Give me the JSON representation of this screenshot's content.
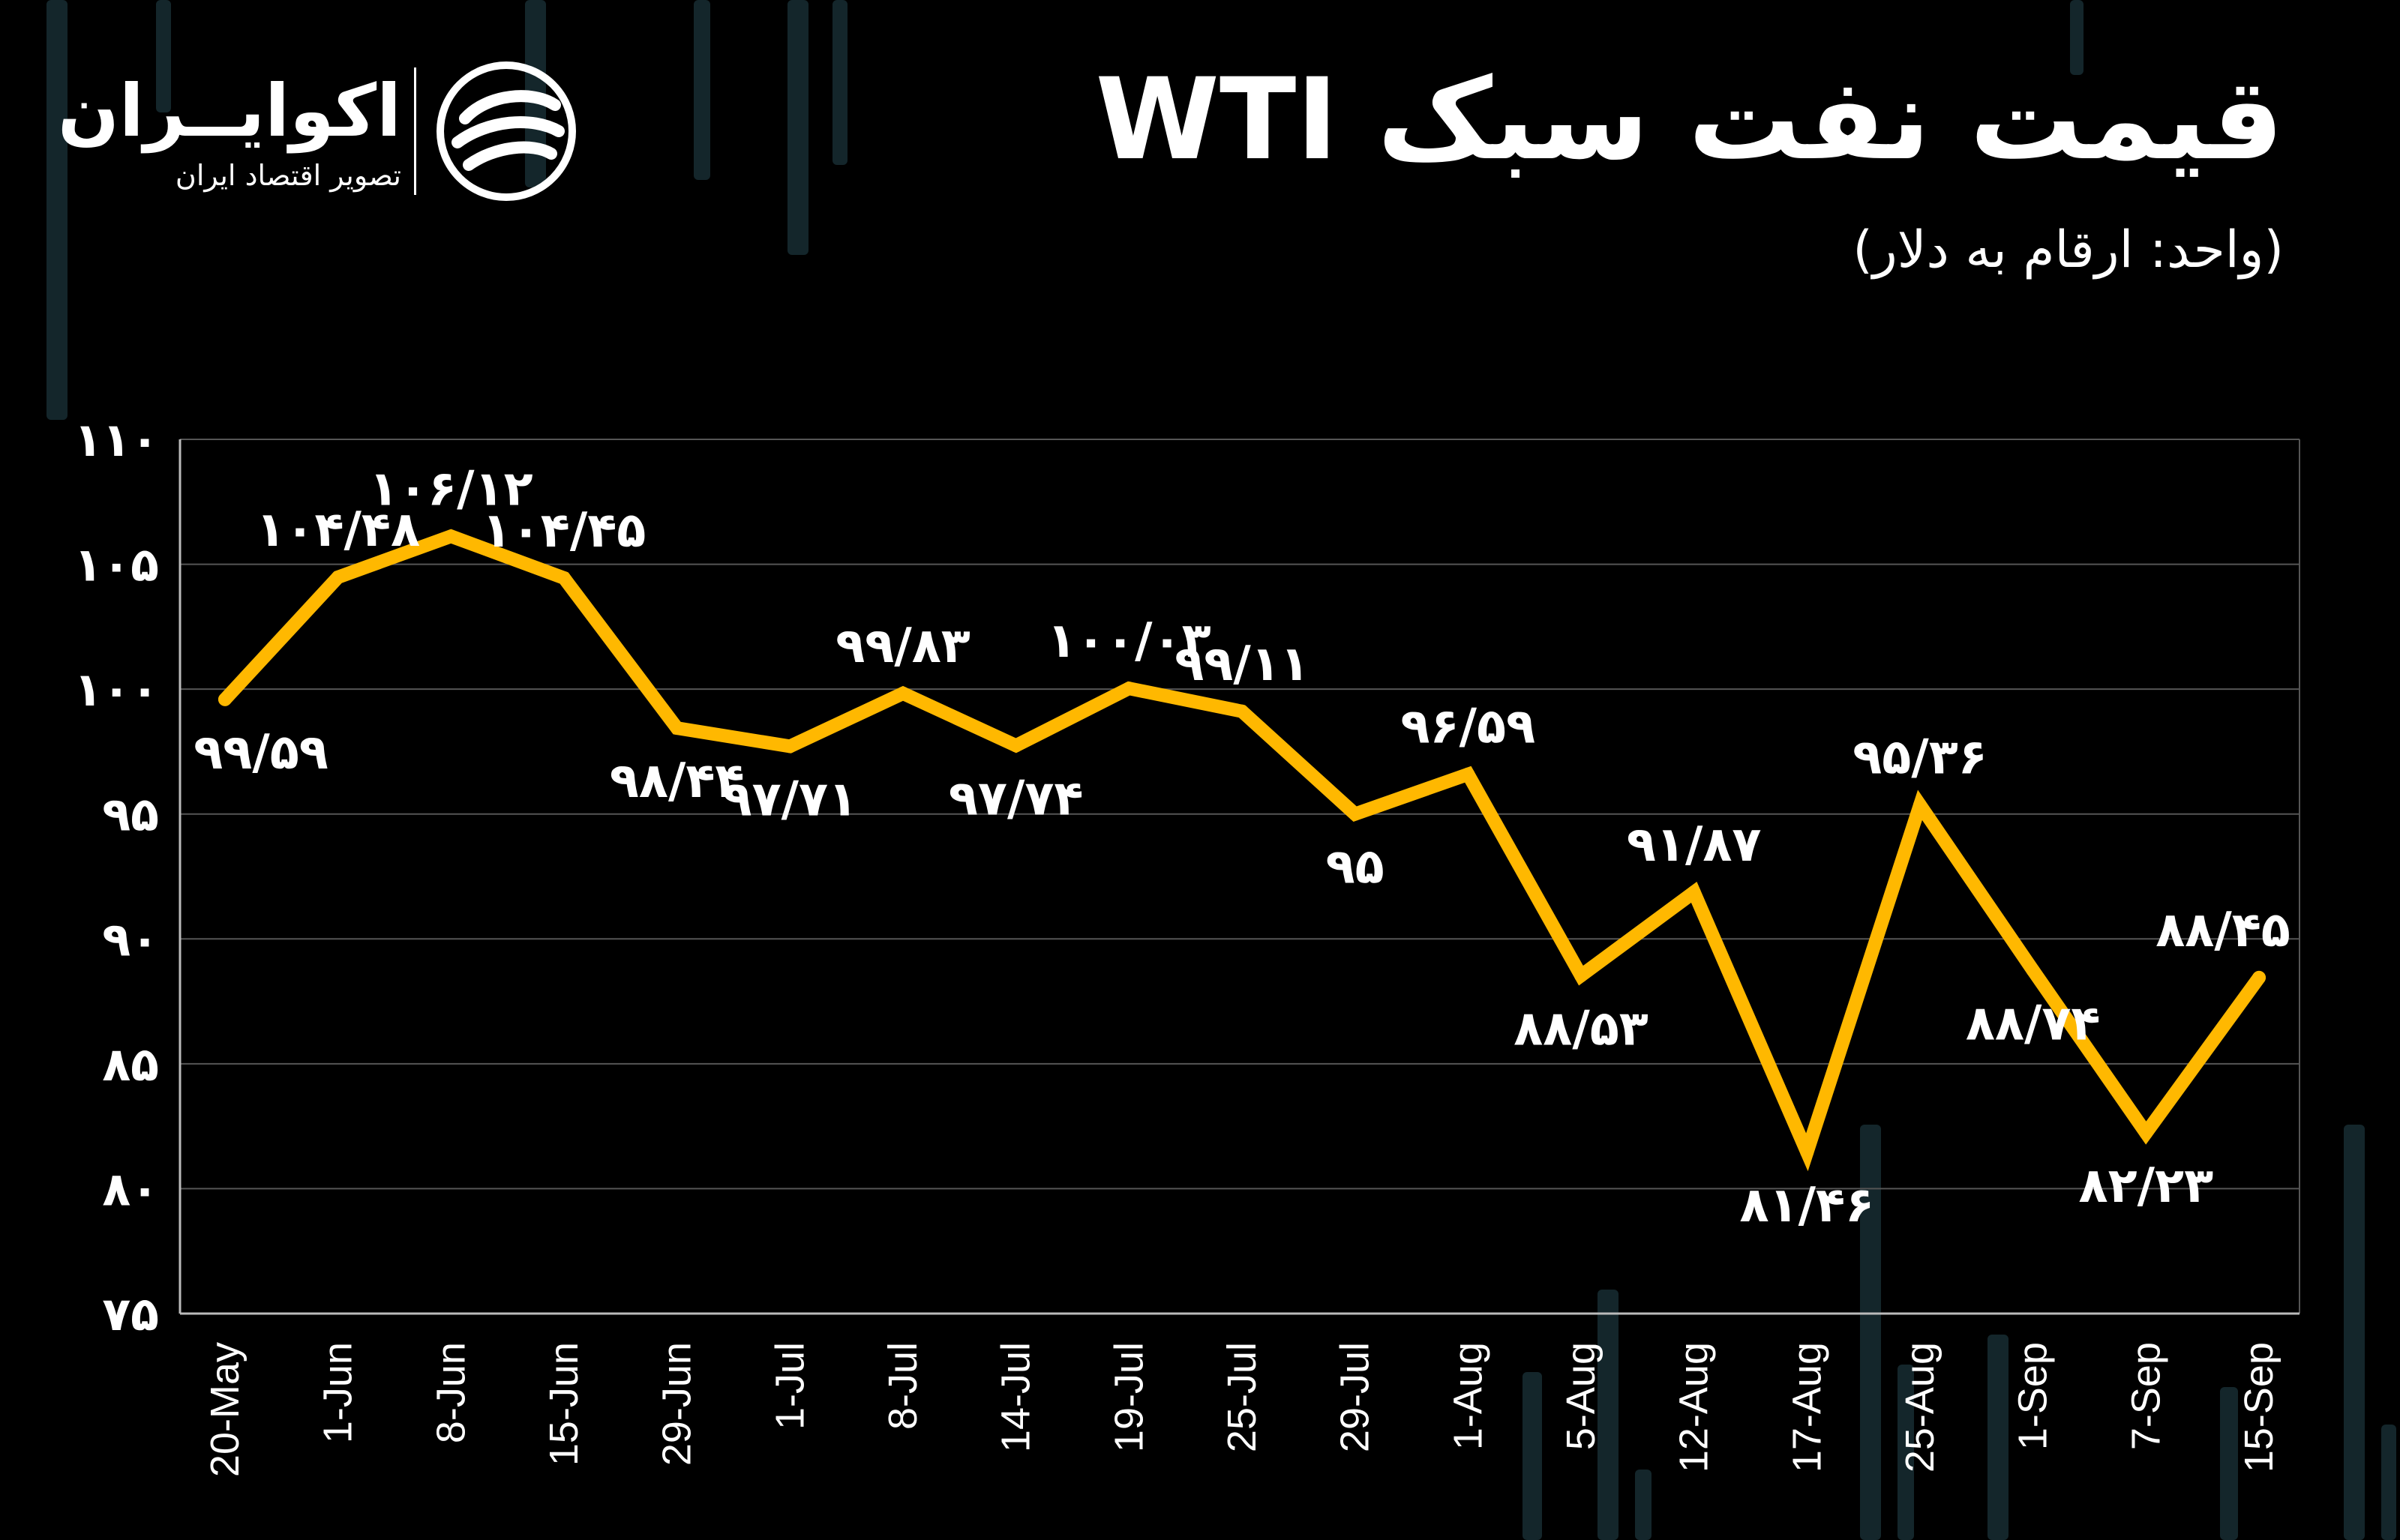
{
  "header": {
    "title": "قیمت نفت سبک WTI",
    "subtitle": "(واحد: ارقام به دلار)"
  },
  "logo": {
    "name": "اکوایــران",
    "tagline": "تصویر اقتصاد ایران",
    "icon": "ecoiran-swirl-icon"
  },
  "colors": {
    "background": "#000000",
    "line": "#FFB800",
    "grid": "#555555",
    "text": "#FFFFFF",
    "decor": "#14262B"
  },
  "chart_data": {
    "type": "line",
    "title": "قیمت نفت سبک WTI",
    "xlabel": "",
    "ylabel": "",
    "ylim": [
      75,
      110
    ],
    "yticks": [
      75,
      80,
      85,
      90,
      95,
      100,
      105,
      110
    ],
    "ytick_labels": [
      "۷۵",
      "۸۰",
      "۸۵",
      "۹۰",
      "۹۵",
      "۱۰۰",
      "۱۰۵",
      "۱۱۰"
    ],
    "grid": true,
    "legend": "none",
    "categories": [
      "20-May",
      "1-Jun",
      "8-Jun",
      "15-Jun",
      "29-Jun",
      "1-Jul",
      "8-Jul",
      "14-Jul",
      "19-Jul",
      "25-Jul",
      "29-Jul",
      "1-Aug",
      "5-Aug",
      "12-Aug",
      "17-Aug",
      "25-Aug",
      "1-Sep",
      "7-Sep",
      "15-Sep"
    ],
    "series": [
      {
        "values": [
          99.59,
          104.48,
          106.12,
          104.45,
          98.44,
          97.71,
          99.83,
          97.74,
          100.03,
          99.11,
          95,
          96.59,
          88.53,
          91.87,
          81.46,
          95.36,
          88.74,
          82.23,
          88.45
        ],
        "labels": [
          "۹۹/۵۹",
          "۱۰۴/۴۸",
          "۱۰۶/۱۲",
          "۱۰۴/۴۵",
          "۹۸/۴۴",
          "۹۷/۷۱",
          "۹۹/۸۳",
          "۹۷/۷۴",
          "۱۰۰/۰۳",
          "۹۹/۱۱",
          "۹۵",
          "۹۶/۵۹",
          "۸۸/۵۳",
          "۹۱/۸۷",
          "۸۱/۴۶",
          "۹۵/۳۶",
          "۸۸/۷۴",
          "۸۲/۲۳",
          "۸۸/۴۵"
        ],
        "label_positions": [
          "below",
          "above",
          "above",
          "above",
          "below",
          "below",
          "above",
          "below",
          "above",
          "above",
          "below",
          "above",
          "below",
          "above",
          "below",
          "above",
          "below",
          "below",
          "above"
        ]
      }
    ]
  }
}
